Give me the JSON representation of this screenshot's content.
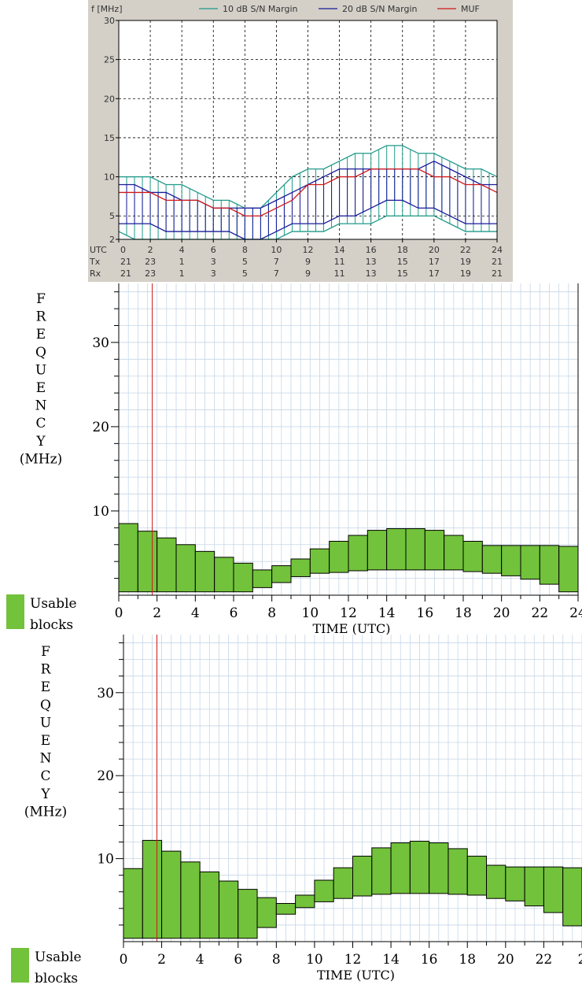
{
  "chart_data": [
    {
      "type": "area",
      "ylabel": "f [MHz]",
      "ylim": [
        2,
        30
      ],
      "yticks": [
        2,
        5,
        10,
        15,
        20,
        25,
        30
      ],
      "xlim": [
        0,
        24
      ],
      "legend_position": "top",
      "row_labels": [
        "UTC",
        "Tx",
        "Rx"
      ],
      "utc_ticks": [
        "0",
        "2",
        "4",
        "6",
        "8",
        "10",
        "12",
        "14",
        "16",
        "18",
        "20",
        "22",
        "24"
      ],
      "tx_ticks": [
        "21",
        "23",
        "1",
        "3",
        "5",
        "7",
        "9",
        "11",
        "13",
        "15",
        "17",
        "19",
        "21"
      ],
      "rx_ticks": [
        "21",
        "23",
        "1",
        "3",
        "5",
        "7",
        "9",
        "11",
        "13",
        "15",
        "17",
        "19",
        "21"
      ],
      "x": [
        0,
        1,
        2,
        3,
        4,
        5,
        6,
        7,
        8,
        9,
        10,
        11,
        12,
        13,
        14,
        15,
        16,
        17,
        18,
        19,
        20,
        21,
        22,
        23,
        24
      ],
      "series": [
        {
          "name": "10 dB S/N Margin",
          "color": "#1f9a8a",
          "upper": [
            10,
            10,
            10,
            9,
            9,
            8,
            7,
            7,
            6,
            6,
            8,
            10,
            11,
            11,
            12,
            13,
            13,
            14,
            14,
            13,
            13,
            12,
            11,
            11,
            10
          ],
          "lower": [
            3,
            2,
            2,
            2,
            2,
            2,
            2,
            2,
            2,
            2,
            2,
            3,
            3,
            3,
            4,
            4,
            4,
            5,
            5,
            5,
            5,
            4,
            3,
            3,
            3
          ]
        },
        {
          "name": "20 dB S/N Margin",
          "color": "#1a1a9a",
          "upper": [
            9,
            9,
            8,
            8,
            7,
            7,
            6,
            6,
            6,
            6,
            7,
            8,
            9,
            10,
            11,
            11,
            11,
            11,
            11,
            11,
            12,
            11,
            10,
            9,
            9
          ],
          "lower": [
            4,
            4,
            4,
            3,
            3,
            3,
            3,
            3,
            2,
            2,
            3,
            4,
            4,
            4,
            5,
            5,
            6,
            7,
            7,
            6,
            6,
            5,
            4,
            4,
            4
          ]
        },
        {
          "name": "MUF",
          "color": "#d01818",
          "values": [
            8,
            8,
            8,
            7,
            7,
            7,
            6,
            6,
            5,
            5,
            6,
            7,
            9,
            9,
            10,
            10,
            11,
            11,
            11,
            11,
            10,
            10,
            9,
            9,
            8
          ]
        }
      ]
    },
    {
      "type": "bar",
      "ylabel": "FREQUENCY (MHz)",
      "ylabel_letters": [
        "F",
        "R",
        "E",
        "Q",
        "U",
        "E",
        "N",
        "C",
        "Y"
      ],
      "ylabel_unit": "(MHz)",
      "xlabel": "TIME (UTC)",
      "xlim": [
        0,
        24
      ],
      "ylim": [
        0,
        37
      ],
      "yticks": [
        "10",
        "20",
        "30"
      ],
      "xticks": [
        "0",
        "2",
        "4",
        "6",
        "8",
        "10",
        "12",
        "14",
        "16",
        "18",
        "20",
        "22",
        "24"
      ],
      "marker_x": 1.75,
      "legend": [
        "Usable",
        "blocks"
      ],
      "bar_color": "#72c23b",
      "hours": [
        0,
        1,
        2,
        3,
        4,
        5,
        6,
        7,
        8,
        9,
        10,
        11,
        12,
        13,
        14,
        15,
        16,
        17,
        18,
        19,
        20,
        21,
        22,
        23
      ],
      "upper": [
        8.5,
        7.6,
        6.8,
        6.0,
        5.2,
        4.5,
        3.8,
        3.0,
        3.5,
        4.3,
        5.5,
        6.4,
        7.1,
        7.7,
        7.9,
        7.9,
        7.7,
        7.1,
        6.4,
        5.9,
        5.9,
        5.9,
        5.9,
        5.8
      ],
      "lower": [
        0.4,
        0.4,
        0.4,
        0.4,
        0.4,
        0.4,
        0.4,
        0.9,
        1.5,
        2.2,
        2.6,
        2.7,
        2.9,
        3.0,
        3.0,
        3.0,
        3.0,
        3.0,
        2.8,
        2.6,
        2.3,
        1.9,
        1.3,
        0.4
      ]
    },
    {
      "type": "bar",
      "ylabel": "FREQUENCY (MHz)",
      "ylabel_letters": [
        "F",
        "R",
        "E",
        "Q",
        "U",
        "E",
        "N",
        "C",
        "Y"
      ],
      "ylabel_unit": "(MHz)",
      "xlabel": "TIME (UTC)",
      "xlim": [
        0,
        24
      ],
      "ylim": [
        0,
        37
      ],
      "yticks": [
        "10",
        "20",
        "30"
      ],
      "xticks": [
        "0",
        "2",
        "4",
        "6",
        "8",
        "10",
        "12",
        "14",
        "16",
        "18",
        "20",
        "22",
        "2"
      ],
      "marker_x": 1.75,
      "legend": [
        "Usable",
        "blocks"
      ],
      "bar_color": "#72c23b",
      "hours": [
        0,
        1,
        2,
        3,
        4,
        5,
        6,
        7,
        8,
        9,
        10,
        11,
        12,
        13,
        14,
        15,
        16,
        17,
        18,
        19,
        20,
        21,
        22,
        23
      ],
      "upper": [
        8.8,
        12.2,
        10.9,
        9.6,
        8.4,
        7.3,
        6.3,
        5.3,
        4.6,
        5.6,
        7.4,
        8.9,
        10.3,
        11.3,
        11.9,
        12.1,
        11.9,
        11.2,
        10.3,
        9.2,
        9.0,
        9.0,
        9.0,
        8.9
      ],
      "lower": [
        0.4,
        0.4,
        0.4,
        0.4,
        0.4,
        0.4,
        0.4,
        1.7,
        3.3,
        4.1,
        4.8,
        5.2,
        5.5,
        5.7,
        5.8,
        5.8,
        5.8,
        5.7,
        5.6,
        5.2,
        4.9,
        4.3,
        3.5,
        1.9
      ]
    }
  ]
}
